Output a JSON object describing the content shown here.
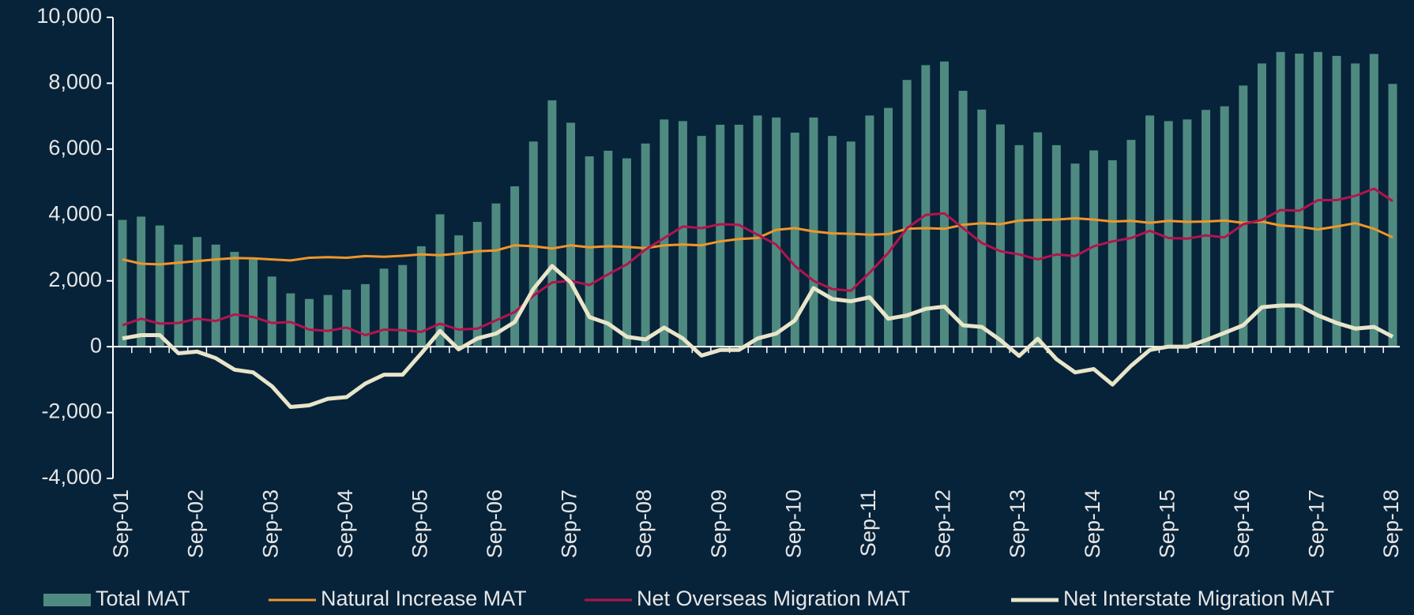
{
  "chart_data": {
    "type": "bar",
    "categories": [
      "Sep-01",
      null,
      null,
      null,
      "Sep-02",
      null,
      null,
      null,
      "Sep-03",
      null,
      null,
      null,
      "Sep-04",
      null,
      null,
      null,
      "Sep-05",
      null,
      null,
      null,
      "Sep-06",
      null,
      null,
      null,
      "Sep-07",
      null,
      null,
      null,
      "Sep-08",
      null,
      null,
      null,
      "Sep-09",
      null,
      null,
      null,
      "Sep-10",
      null,
      null,
      null,
      "Sep-11",
      null,
      null,
      null,
      "Sep-12",
      null,
      null,
      null,
      "Sep-13",
      null,
      null,
      null,
      "Sep-14",
      null,
      null,
      null,
      "Sep-15",
      null,
      null,
      null,
      "Sep-16",
      null,
      null,
      null,
      "Sep-17",
      null,
      null,
      null,
      "Sep-18"
    ],
    "series": [
      {
        "name": "Total MAT",
        "type": "bar",
        "color": "#4f8a80",
        "values": [
          3850,
          3950,
          3680,
          3100,
          3330,
          3100,
          2880,
          2650,
          2130,
          1620,
          1450,
          1570,
          1730,
          1900,
          2370,
          2480,
          3050,
          4020,
          3380,
          3790,
          4350,
          4870,
          6230,
          7480,
          6800,
          5780,
          5950,
          5720,
          6170,
          6900,
          6850,
          6400,
          6740,
          6740,
          7020,
          6960,
          6500,
          6960,
          6400,
          6230,
          7020,
          7250,
          8100,
          8550,
          8660,
          7770,
          7200,
          6750,
          6120,
          6510,
          6120,
          5560,
          5960,
          5660,
          6280,
          7020,
          6850,
          6900,
          7190,
          7300,
          7930,
          8600,
          8950,
          8900,
          8950,
          8830,
          8600,
          8890,
          7980
        ]
      },
      {
        "name": "Natural Increase MAT",
        "type": "line",
        "color": "#f0962a",
        "values": [
          2650,
          2520,
          2500,
          2550,
          2600,
          2650,
          2690,
          2680,
          2650,
          2620,
          2700,
          2720,
          2700,
          2750,
          2730,
          2760,
          2800,
          2780,
          2830,
          2900,
          2920,
          3080,
          3050,
          2980,
          3080,
          3020,
          3050,
          3030,
          2990,
          3080,
          3100,
          3080,
          3200,
          3270,
          3300,
          3550,
          3600,
          3500,
          3440,
          3430,
          3400,
          3420,
          3580,
          3600,
          3580,
          3700,
          3750,
          3720,
          3830,
          3850,
          3860,
          3900,
          3860,
          3800,
          3820,
          3760,
          3820,
          3790,
          3800,
          3830,
          3760,
          3800,
          3680,
          3640,
          3560,
          3650,
          3750,
          3580,
          3320
        ]
      },
      {
        "name": "Net Overseas Migration MAT",
        "type": "line",
        "color": "#b3144b",
        "values": [
          650,
          850,
          700,
          720,
          850,
          780,
          980,
          900,
          720,
          750,
          520,
          480,
          580,
          350,
          520,
          500,
          450,
          700,
          520,
          550,
          800,
          1050,
          1550,
          1950,
          2000,
          1870,
          2200,
          2500,
          2950,
          3300,
          3650,
          3600,
          3720,
          3700,
          3400,
          3100,
          2450,
          2000,
          1750,
          1700,
          2250,
          2850,
          3600,
          4000,
          4050,
          3600,
          3150,
          2900,
          2800,
          2650,
          2800,
          2750,
          3050,
          3200,
          3300,
          3520,
          3300,
          3280,
          3380,
          3320,
          3720,
          3850,
          4150,
          4130,
          4450,
          4450,
          4580,
          4800,
          4420
        ]
      },
      {
        "name": "Net Interstate Migration MAT",
        "type": "line",
        "color": "#e9e5c9",
        "values": [
          250,
          350,
          350,
          -200,
          -150,
          -350,
          -700,
          -780,
          -1200,
          -1830,
          -1780,
          -1580,
          -1530,
          -1120,
          -850,
          -850,
          -200,
          480,
          -80,
          250,
          400,
          750,
          1750,
          2450,
          1950,
          900,
          700,
          300,
          220,
          580,
          250,
          -270,
          -100,
          -100,
          250,
          400,
          800,
          1780,
          1450,
          1380,
          1500,
          850,
          950,
          1150,
          1220,
          650,
          600,
          200,
          -280,
          240,
          -380,
          -780,
          -680,
          -1150,
          -580,
          -100,
          0,
          0,
          200,
          420,
          650,
          1200,
          1250,
          1250,
          950,
          720,
          550,
          600,
          300
        ]
      }
    ],
    "ylim": [
      -4000,
      10000
    ],
    "yticks": [
      {
        "value": -4000,
        "label": "-4,000"
      },
      {
        "value": -2000,
        "label": "-2,000"
      },
      0,
      {
        "value": 2000,
        "label": "2,000"
      },
      {
        "value": 4000,
        "label": "4,000"
      },
      {
        "value": 6000,
        "label": "6,000"
      },
      {
        "value": 8000,
        "label": "8,000"
      },
      {
        "value": 10000,
        "label": "10,000"
      }
    ],
    "grid": false,
    "legend": "bottom"
  }
}
